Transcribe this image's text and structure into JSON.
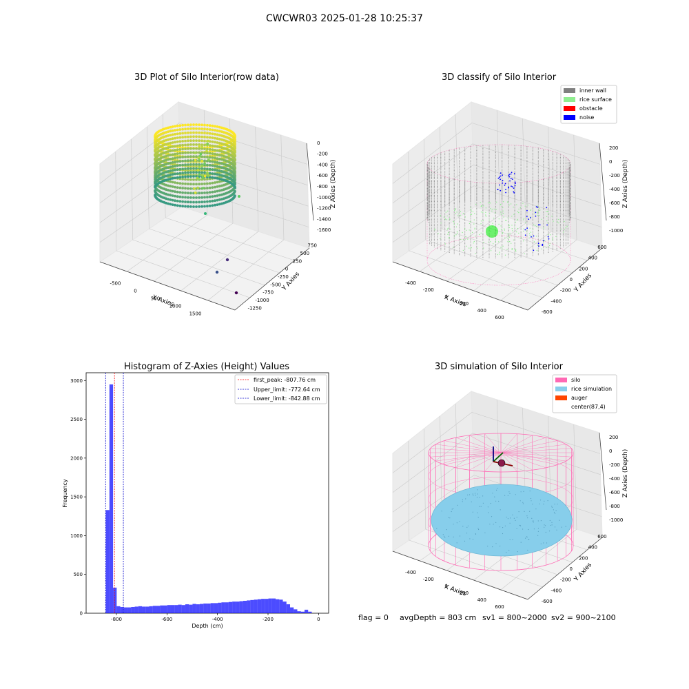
{
  "figure": {
    "suptitle": "CWCWR03 2025-01-28 10:25:37",
    "status_line": {
      "flag": "flag = 0",
      "avg_depth": "avgDepth = 803 cm",
      "sv1": "sv1 = 800~2000",
      "sv2": "sv2 = 900~2100"
    }
  },
  "colors": {
    "inner_wall": "#808080",
    "rice_surface": "#90ee90",
    "obstacle": "#ff0000",
    "noise": "#0000ff",
    "silo": "#ff69b4",
    "rice_simulation": "#87ceeb",
    "auger": "#ff4500",
    "histogram": "#0000ff",
    "first_peak_line": "#ff0000",
    "limit_lines": "#0000cd"
  },
  "chart_data": [
    {
      "type": "scatter",
      "id": "raw",
      "title": "3D Plot of Silo Interior(row data)",
      "xlabel": "X Axies",
      "ylabel": "Y Axies",
      "zlabel": "Z Axies (Depth)",
      "x_ticks": [
        "-500",
        "0",
        "500",
        "1000",
        "1500"
      ],
      "y_ticks": [
        "750",
        "500",
        "250",
        "0",
        "-250",
        "-500",
        "-750",
        "-1000",
        "-1250"
      ],
      "z_ticks": [
        "0",
        "-200",
        "-400",
        "-600",
        "-800",
        "-1000",
        "-1200",
        "-1400",
        "-1600"
      ],
      "outliers": [
        {
          "x": 1250,
          "y": -1150,
          "z": -1600,
          "color": "#440154"
        },
        {
          "x": 1000,
          "y": -900,
          "z": -1500,
          "color": "#3b528b"
        },
        {
          "x": 800,
          "y": -600,
          "z": -1350,
          "color": "#472d7b"
        }
      ]
    },
    {
      "type": "scatter",
      "id": "classify",
      "title": "3D classify of Silo Interior",
      "xlabel": "X Axies",
      "ylabel": "Y Axies",
      "zlabel": "Z Axies (Depth)",
      "x_ticks": [
        "-400",
        "-200",
        "0",
        "200",
        "400",
        "600"
      ],
      "y_ticks": [
        "600",
        "400",
        "200",
        "0",
        "-200",
        "-400",
        "-600"
      ],
      "z_ticks": [
        "200",
        "0",
        "-200",
        "-400",
        "-600",
        "-800",
        "-1000"
      ],
      "legend": [
        "inner wall",
        "rice surface",
        "obstacle",
        "noise"
      ],
      "legend_loc": "upper-right"
    },
    {
      "type": "bar",
      "id": "hist",
      "title": "Histogram of Z-Axies (Height) Values",
      "xlabel": "Depth (cm)",
      "ylabel": "Frequency",
      "xlim": [
        -920,
        40
      ],
      "ylim": [
        0,
        3100
      ],
      "x_ticks": [
        -800,
        -600,
        -400,
        -200,
        0
      ],
      "y_ticks": [
        0,
        500,
        1000,
        1500,
        2000,
        2500,
        3000
      ],
      "bin_start": -842,
      "bin_width": 14.3,
      "values": [
        1330,
        2950,
        330,
        90,
        80,
        75,
        75,
        80,
        85,
        90,
        85,
        85,
        90,
        95,
        95,
        100,
        100,
        105,
        105,
        105,
        110,
        105,
        115,
        110,
        120,
        115,
        120,
        125,
        125,
        130,
        130,
        135,
        140,
        140,
        145,
        150,
        150,
        155,
        160,
        165,
        170,
        175,
        180,
        185,
        185,
        190,
        190,
        180,
        175,
        150,
        115,
        75,
        50,
        25,
        20,
        45,
        20
      ],
      "vlines": [
        {
          "label": "first_peak: -807.76 cm",
          "x": -807.76,
          "color": "#ff0000"
        },
        {
          "label": "Upper_limit: -772.64 cm",
          "x": -772.64,
          "color": "#0000cd"
        },
        {
          "label": "Lower_limit: -842.88 cm",
          "x": -842.88,
          "color": "#0000cd"
        }
      ],
      "legend_loc": "upper-right"
    },
    {
      "type": "scatter",
      "id": "sim",
      "title": "3D simulation of Silo Interior",
      "xlabel": "X Axies",
      "ylabel": "Y Axies",
      "zlabel": "Z Axies (Depth)",
      "x_ticks": [
        "-400",
        "-200",
        "0",
        "200",
        "400",
        "600"
      ],
      "y_ticks": [
        "600",
        "400",
        "200",
        "0",
        "-200",
        "-400",
        "-600"
      ],
      "z_ticks": [
        "200",
        "0",
        "-200",
        "-400",
        "-600",
        "-800",
        "-1000"
      ],
      "legend": [
        "silo",
        "rice simulation",
        "auger",
        "center(87,4)"
      ],
      "legend_loc": "upper-right"
    }
  ]
}
